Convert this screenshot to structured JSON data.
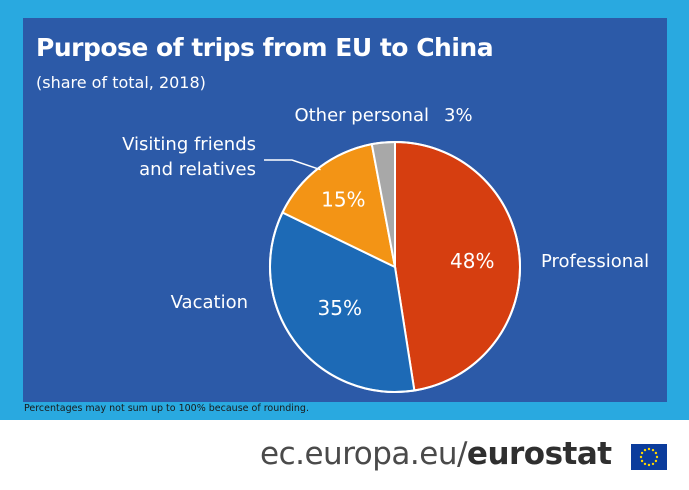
{
  "header": {
    "title": "Purpose of trips from EU to China",
    "subtitle": "(share of total, 2018)"
  },
  "chart_data": {
    "type": "pie",
    "title": "Purpose of trips from EU to China",
    "subtitle": "(share of total, 2018)",
    "slices": [
      {
        "label": "Professional",
        "value": 48,
        "value_label": "48%",
        "color": "#d63e10"
      },
      {
        "label": "Vacation",
        "value": 35,
        "value_label": "35%",
        "color": "#1d6ab6"
      },
      {
        "label": "Visiting friends and relatives",
        "label_lines": [
          "Visiting friends",
          "and relatives"
        ],
        "value": 15,
        "value_label": "15%",
        "color": "#f39415"
      },
      {
        "label": "Other personal",
        "value": 3,
        "value_label": "3%",
        "color": "#a8a8a8"
      }
    ],
    "start": "12 o'clock",
    "direction": "clockwise"
  },
  "footnote": "Percentages may not sum up to 100% because of rounding.",
  "footer": {
    "domain": "ec.europa.eu/",
    "brand": "eurostat",
    "flag_icon": "eu-flag-icon"
  },
  "colors": {
    "frame": "#29a9e0",
    "panel": "#2c5aa8",
    "text": "#ffffff"
  }
}
